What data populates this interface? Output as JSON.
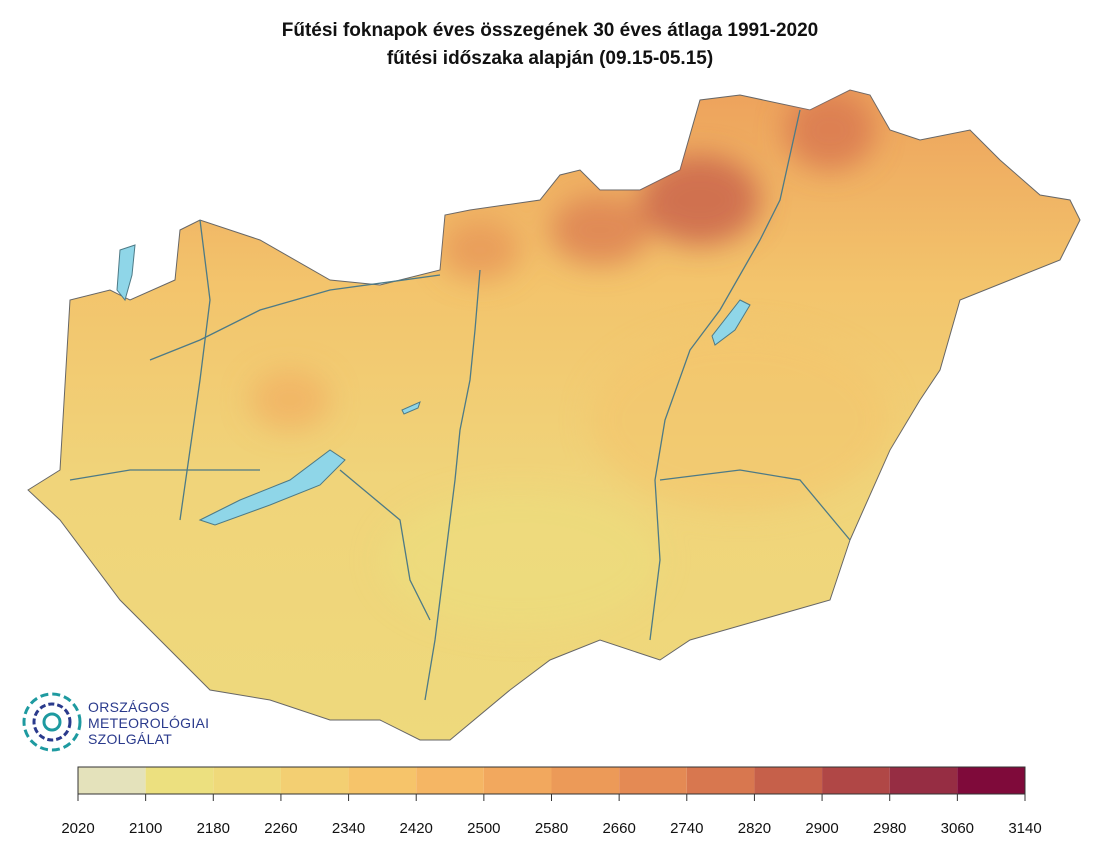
{
  "title": "Fűtési foknapok éves összegének 30 éves átlaga 1991-2020",
  "subtitle": "fűtési időszaka alapján (09.15-05.15)",
  "logo": {
    "lines": [
      "ORSZÁGOS",
      "METEOROLÓGIAI",
      "SZOLGÁLAT"
    ]
  },
  "legend": {
    "bins": [
      2020,
      2100,
      2180,
      2260,
      2340,
      2420,
      2500,
      2580,
      2660,
      2740,
      2820,
      2900,
      2980,
      3060,
      3140
    ],
    "colors": [
      "#e4e2bb",
      "#ece07f",
      "#efd97a",
      "#f3cf72",
      "#f6c46a",
      "#f5b664",
      "#f2a85e",
      "#ec9a58",
      "#e48a54",
      "#d8774f",
      "#c6604a",
      "#b04746",
      "#962d43",
      "#7f0a3a"
    ]
  }
}
